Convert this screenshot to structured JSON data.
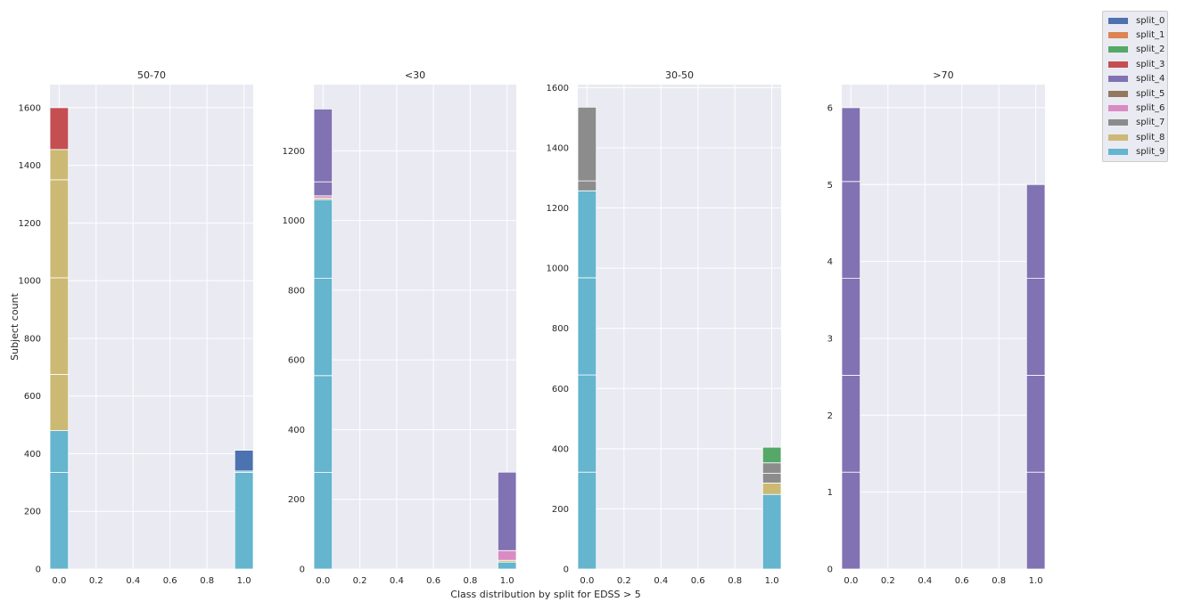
{
  "figure_title": "Class distribution by split for EDSS > 5",
  "shared_ylabel": "Subject count",
  "legend": {
    "position": "top-right",
    "entries": [
      {
        "name": "split_0",
        "color": "#4c72b0"
      },
      {
        "name": "split_1",
        "color": "#dd8452"
      },
      {
        "name": "split_2",
        "color": "#55a868"
      },
      {
        "name": "split_3",
        "color": "#c44e52"
      },
      {
        "name": "split_4",
        "color": "#8172b3"
      },
      {
        "name": "split_5",
        "color": "#937860"
      },
      {
        "name": "split_6",
        "color": "#da8bc3"
      },
      {
        "name": "split_7",
        "color": "#8c8c8c"
      },
      {
        "name": "split_8",
        "color": "#ccb974"
      },
      {
        "name": "split_9",
        "color": "#64b5cd"
      }
    ]
  },
  "chart_data": [
    {
      "type": "bar",
      "stacked": true,
      "title": "50-70",
      "ylabel": "Subject count",
      "xlim": [
        -0.05,
        1.05
      ],
      "ylim": [
        0,
        1680
      ],
      "xticks": [
        0.0,
        0.2,
        0.4,
        0.6,
        0.8,
        1.0
      ],
      "xtick_labels": [
        "0.0",
        "0.2",
        "0.4",
        "0.6",
        "0.8",
        "1.0"
      ],
      "yticks": [
        0,
        200,
        400,
        600,
        800,
        1000,
        1200,
        1400,
        1600
      ],
      "ytick_labels": [
        "0",
        "200",
        "400",
        "600",
        "800",
        "1000",
        "1200",
        "1400",
        "1600"
      ],
      "bar_width": 0.1,
      "bins": [
        {
          "x": 0.0,
          "segments": [
            {
              "series": "split_9",
              "value": 335,
              "color": "#64b5cd"
            },
            {
              "series": "split_9",
              "value": 145,
              "color": "#64b5cd"
            },
            {
              "series": "split_8",
              "value": 195,
              "color": "#ccb974"
            },
            {
              "series": "split_8",
              "value": 335,
              "color": "#ccb974"
            },
            {
              "series": "split_8",
              "value": 340,
              "color": "#ccb974"
            },
            {
              "series": "split_8",
              "value": 105,
              "color": "#ccb974"
            },
            {
              "series": "split_3",
              "value": 145,
              "color": "#c44e52"
            }
          ]
        },
        {
          "x": 1.0,
          "segments": [
            {
              "series": "split_9",
              "value": 335,
              "color": "#64b5cd"
            },
            {
              "series": "split_9",
              "value": 5,
              "color": "#64b5cd"
            },
            {
              "series": "split_0",
              "value": 72,
              "color": "#4c72b0"
            }
          ]
        }
      ]
    },
    {
      "type": "bar",
      "stacked": true,
      "title": "<30",
      "ylabel": "",
      "xlim": [
        -0.05,
        1.05
      ],
      "ylim": [
        0,
        1390
      ],
      "xticks": [
        0.0,
        0.2,
        0.4,
        0.6,
        0.8,
        1.0
      ],
      "xtick_labels": [
        "0.0",
        "0.2",
        "0.4",
        "0.6",
        "0.8",
        "1.0"
      ],
      "yticks": [
        0,
        200,
        400,
        600,
        800,
        1000,
        1200
      ],
      "ytick_labels": [
        "0",
        "200",
        "400",
        "600",
        "800",
        "1000",
        "1200"
      ],
      "bar_width": 0.1,
      "bins": [
        {
          "x": 0.0,
          "segments": [
            {
              "series": "split_9",
              "value": 277,
              "color": "#64b5cd"
            },
            {
              "series": "split_9",
              "value": 278,
              "color": "#64b5cd"
            },
            {
              "series": "split_9",
              "value": 279,
              "color": "#64b5cd"
            },
            {
              "series": "split_9",
              "value": 226,
              "color": "#64b5cd"
            },
            {
              "series": "split_8",
              "value": 4,
              "color": "#ccb974"
            },
            {
              "series": "split_6",
              "value": 7,
              "color": "#da8bc3"
            },
            {
              "series": "split_4",
              "value": 40,
              "color": "#8172b3"
            },
            {
              "series": "split_4",
              "value": 209,
              "color": "#8172b3"
            }
          ]
        },
        {
          "x": 1.0,
          "segments": [
            {
              "series": "split_9",
              "value": 20,
              "color": "#64b5cd"
            },
            {
              "series": "split_8",
              "value": 5,
              "color": "#ccb974"
            },
            {
              "series": "split_6",
              "value": 28,
              "color": "#da8bc3"
            },
            {
              "series": "split_4",
              "value": 225,
              "color": "#8172b3"
            }
          ]
        }
      ]
    },
    {
      "type": "bar",
      "stacked": true,
      "title": "30-50",
      "ylabel": "",
      "xlim": [
        -0.05,
        1.05
      ],
      "ylim": [
        0,
        1610
      ],
      "xticks": [
        0.0,
        0.2,
        0.4,
        0.6,
        0.8,
        1.0
      ],
      "xtick_labels": [
        "0.0",
        "0.2",
        "0.4",
        "0.6",
        "0.8",
        "1.0"
      ],
      "yticks": [
        0,
        200,
        400,
        600,
        800,
        1000,
        1200,
        1400,
        1600
      ],
      "ytick_labels": [
        "0",
        "200",
        "400",
        "600",
        "800",
        "1000",
        "1200",
        "1400",
        "1600"
      ],
      "bar_width": 0.1,
      "bins": [
        {
          "x": 0.0,
          "segments": [
            {
              "series": "split_9",
              "value": 322,
              "color": "#64b5cd"
            },
            {
              "series": "split_9",
              "value": 323,
              "color": "#64b5cd"
            },
            {
              "series": "split_9",
              "value": 323,
              "color": "#64b5cd"
            },
            {
              "series": "split_9",
              "value": 289,
              "color": "#64b5cd"
            },
            {
              "series": "split_7",
              "value": 33,
              "color": "#8c8c8c"
            },
            {
              "series": "split_7",
              "value": 245,
              "color": "#8c8c8c"
            }
          ]
        },
        {
          "x": 1.0,
          "segments": [
            {
              "series": "split_9",
              "value": 248,
              "color": "#64b5cd"
            },
            {
              "series": "split_8",
              "value": 38,
              "color": "#ccb974"
            },
            {
              "series": "split_7",
              "value": 32,
              "color": "#8c8c8c"
            },
            {
              "series": "split_7",
              "value": 35,
              "color": "#8c8c8c"
            },
            {
              "series": "split_2",
              "value": 52,
              "color": "#55a868"
            }
          ]
        }
      ]
    },
    {
      "type": "bar",
      "stacked": true,
      "title": ">70",
      "ylabel": "",
      "xlim": [
        -0.05,
        1.05
      ],
      "ylim": [
        0,
        6.3
      ],
      "xticks": [
        0.0,
        0.2,
        0.4,
        0.6,
        0.8,
        1.0
      ],
      "xtick_labels": [
        "0.0",
        "0.2",
        "0.4",
        "0.6",
        "0.8",
        "1.0"
      ],
      "yticks": [
        0,
        1,
        2,
        3,
        4,
        5,
        6
      ],
      "ytick_labels": [
        "0",
        "1",
        "2",
        "3",
        "4",
        "5",
        "6"
      ],
      "bar_width": 0.1,
      "bins": [
        {
          "x": 0.0,
          "segments": [
            {
              "series": "split_4",
              "value": 1.26,
              "color": "#8172b3"
            },
            {
              "series": "split_4",
              "value": 1.26,
              "color": "#8172b3"
            },
            {
              "series": "split_4",
              "value": 1.26,
              "color": "#8172b3"
            },
            {
              "series": "split_4",
              "value": 1.26,
              "color": "#8172b3"
            },
            {
              "series": "split_4",
              "value": 0.96,
              "color": "#8172b3"
            }
          ]
        },
        {
          "x": 1.0,
          "segments": [
            {
              "series": "split_4",
              "value": 1.26,
              "color": "#8172b3"
            },
            {
              "series": "split_4",
              "value": 1.26,
              "color": "#8172b3"
            },
            {
              "series": "split_4",
              "value": 1.26,
              "color": "#8172b3"
            },
            {
              "series": "split_4",
              "value": 1.22,
              "color": "#8172b3"
            }
          ]
        }
      ]
    }
  ]
}
